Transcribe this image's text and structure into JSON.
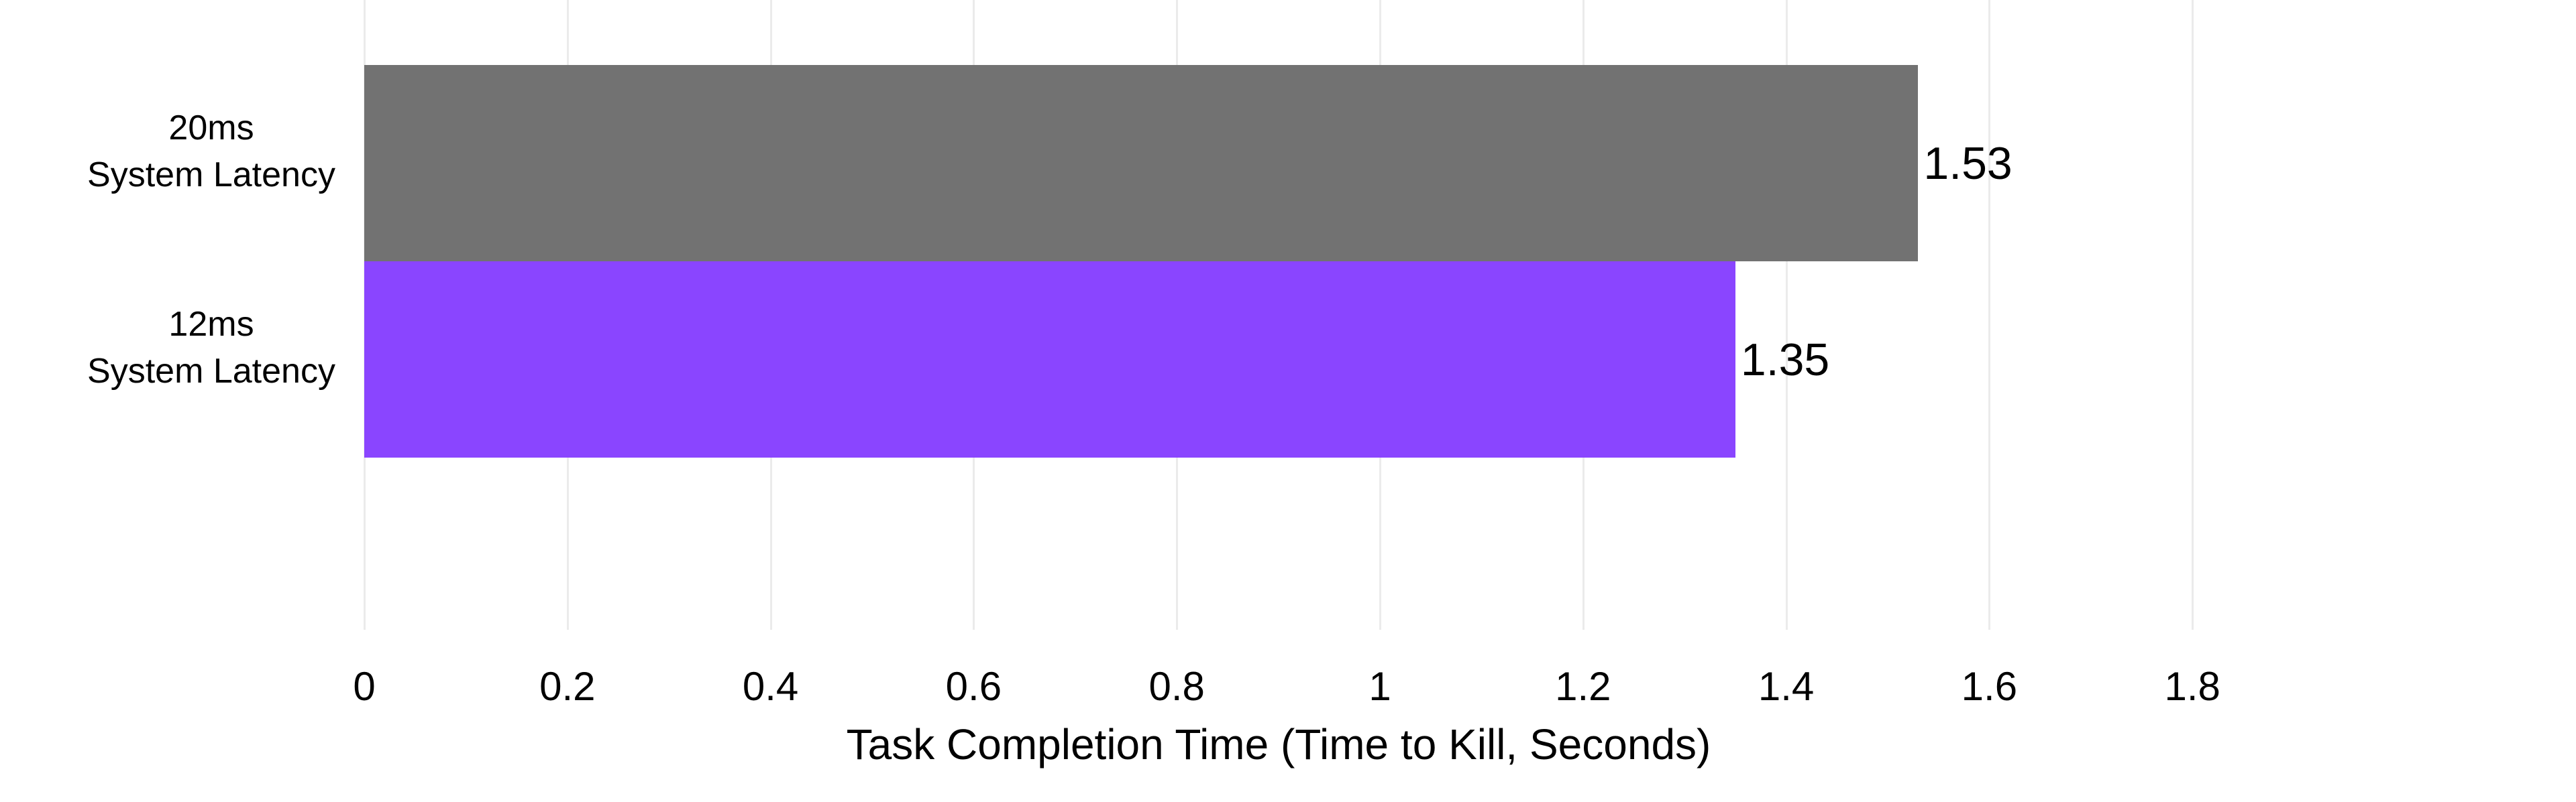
{
  "chart_data": {
    "type": "bar",
    "orientation": "horizontal",
    "title": "",
    "xlabel": "Task Completion Time (Time to Kill, Seconds)",
    "ylabel": "",
    "categories": [
      "20ms System Latency",
      "12ms System Latency"
    ],
    "category_lines": [
      [
        "20ms",
        "System Latency"
      ],
      [
        "12ms",
        "System Latency"
      ]
    ],
    "values": [
      1.53,
      1.35
    ],
    "value_labels": [
      "1.53",
      "1.35"
    ],
    "bar_colors": [
      "#727272",
      "#8A45FF"
    ],
    "xlim": [
      0,
      1.9
    ],
    "x_tick_values": [
      0,
      0.2,
      0.4,
      0.6,
      0.8,
      1,
      1.2,
      1.4,
      1.6,
      1.8
    ],
    "x_tick_labels": [
      "0",
      "0.2",
      "0.4",
      "0.6",
      "0.8",
      "1",
      "1.2",
      "1.4",
      "1.6",
      "1.8"
    ],
    "grid": "vertical",
    "legend": "none",
    "colors": {
      "grid": "#EBEBEB",
      "text": "#000000",
      "background": "#FFFFFF"
    }
  }
}
